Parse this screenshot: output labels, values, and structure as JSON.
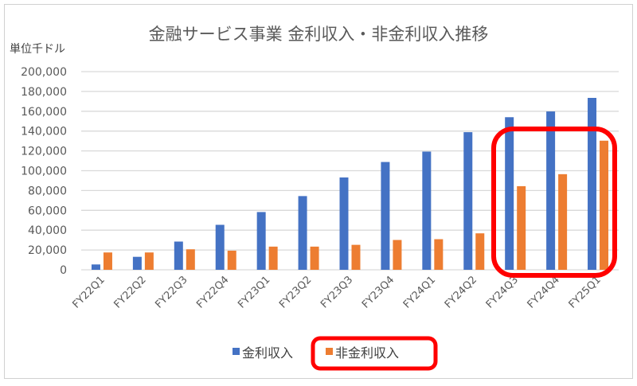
{
  "chart_data": {
    "type": "bar",
    "title": "金融サービス事業 金利収入・非金利収入推移",
    "ylabel": "単位千ドル",
    "xlabel": "",
    "ylim": [
      0,
      200000
    ],
    "yticks": [
      "0",
      "20,000",
      "40,000",
      "60,000",
      "80,000",
      "100,000",
      "120,000",
      "140,000",
      "160,000",
      "180,000",
      "200,000"
    ],
    "grid": true,
    "legend": "bottom",
    "categories": [
      "FY22Q1",
      "FY22Q2",
      "FY22Q3",
      "FY22Q4",
      "FY23Q1",
      "FY23Q2",
      "FY23Q3",
      "FY23Q4",
      "FY24Q1",
      "FY24Q2",
      "FY24Q3",
      "FY24Q4",
      "FY25Q1"
    ],
    "series": [
      {
        "name": "金利収入",
        "color": "#4472C4",
        "values": [
          5400,
          13100,
          28500,
          45400,
          58300,
          74400,
          93200,
          108800,
          119300,
          138900,
          154000,
          159800,
          173500
        ]
      },
      {
        "name": "非金利収入",
        "color": "#ED7D31",
        "values": [
          17500,
          17500,
          20700,
          19300,
          23400,
          23400,
          25200,
          30100,
          30900,
          36800,
          84400,
          96500,
          130300
        ]
      }
    ],
    "highlight_color": "#FF0000",
    "highlights": [
      "FY24Q3–FY25Q1",
      "非金利収入 legend entry"
    ]
  }
}
